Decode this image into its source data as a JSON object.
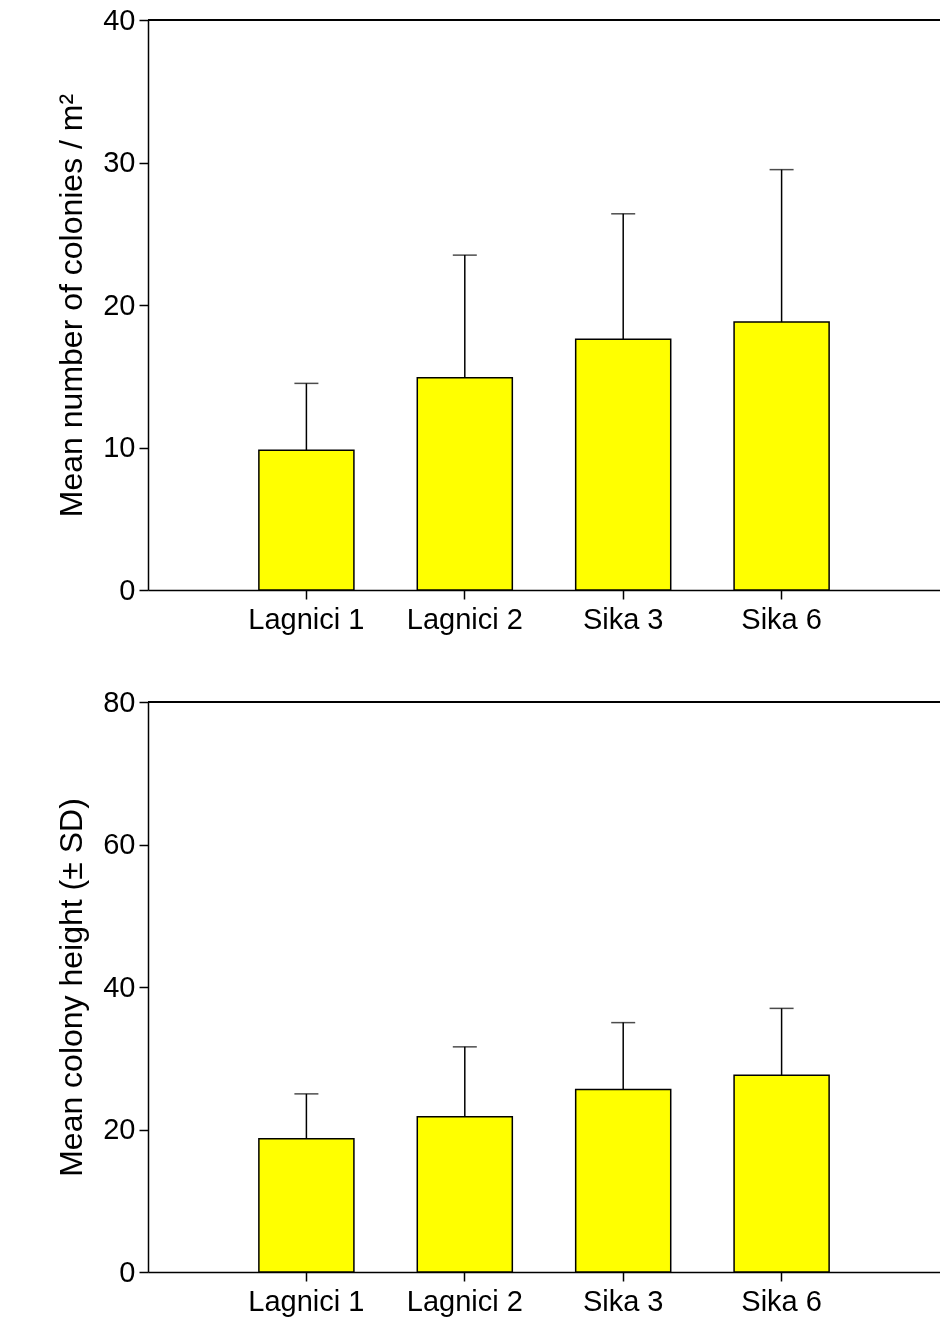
{
  "chart_data": [
    {
      "type": "bar",
      "categories": [
        "Lagnici 1",
        "Lagnici 2",
        "Sika 3",
        "Sika 6"
      ],
      "ylabel": "Mean number of colonies / m²",
      "values": [
        9.8,
        14.9,
        17.6,
        18.8
      ],
      "color": "#ffff00",
      "errors": [
        [
          9.8,
          14.5
        ],
        [
          14.9,
          23.5
        ],
        [
          17.6,
          26.4
        ],
        [
          18.8,
          29.5
        ]
      ],
      "ylim": [
        0,
        40
      ],
      "yticks": [
        0,
        10,
        20,
        30,
        40
      ]
    },
    {
      "type": "bar",
      "categories": [
        "Lagnici 1",
        "Lagnici 2",
        "Sika 3",
        "Sika 6"
      ],
      "ylabel": "Mean colony height (± SD)",
      "values": [
        18.7,
        21.8,
        25.6,
        27.6
      ],
      "color": "#ffff00",
      "errors": [
        [
          18.7,
          25.0
        ],
        [
          21.8,
          31.6
        ],
        [
          25.6,
          35.0
        ],
        [
          27.6,
          37.0
        ]
      ],
      "ylim": [
        0,
        80
      ],
      "yticks": [
        0,
        20,
        40,
        60,
        80
      ]
    }
  ]
}
